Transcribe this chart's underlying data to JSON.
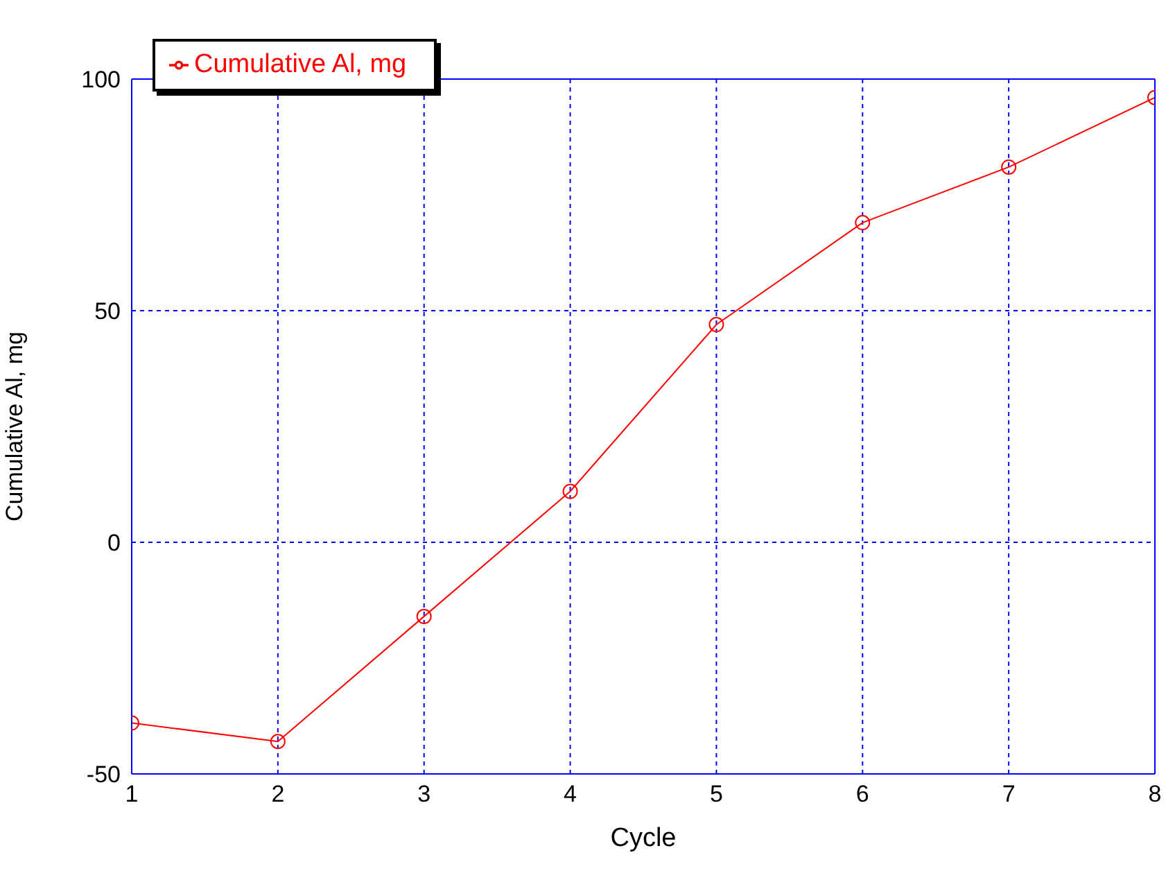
{
  "chart_data": {
    "type": "line",
    "xlabel": "Cycle",
    "ylabel": "Cumulative Al, mg",
    "x": [
      1,
      2,
      3,
      4,
      5,
      6,
      7,
      8
    ],
    "series": [
      {
        "name": "Cumulative Al, mg",
        "color": "#ff0000",
        "values": [
          -39,
          -43,
          -16,
          11,
          47,
          69,
          81,
          96
        ]
      }
    ],
    "xlim": [
      1,
      8
    ],
    "xticks": [
      1,
      2,
      3,
      4,
      5,
      6,
      7,
      8
    ],
    "ylim": [
      -50,
      100
    ],
    "yticks": [
      -50,
      0,
      50,
      100
    ],
    "grid": true,
    "legend": "top left",
    "marker": "circle",
    "line_style": "solid"
  }
}
